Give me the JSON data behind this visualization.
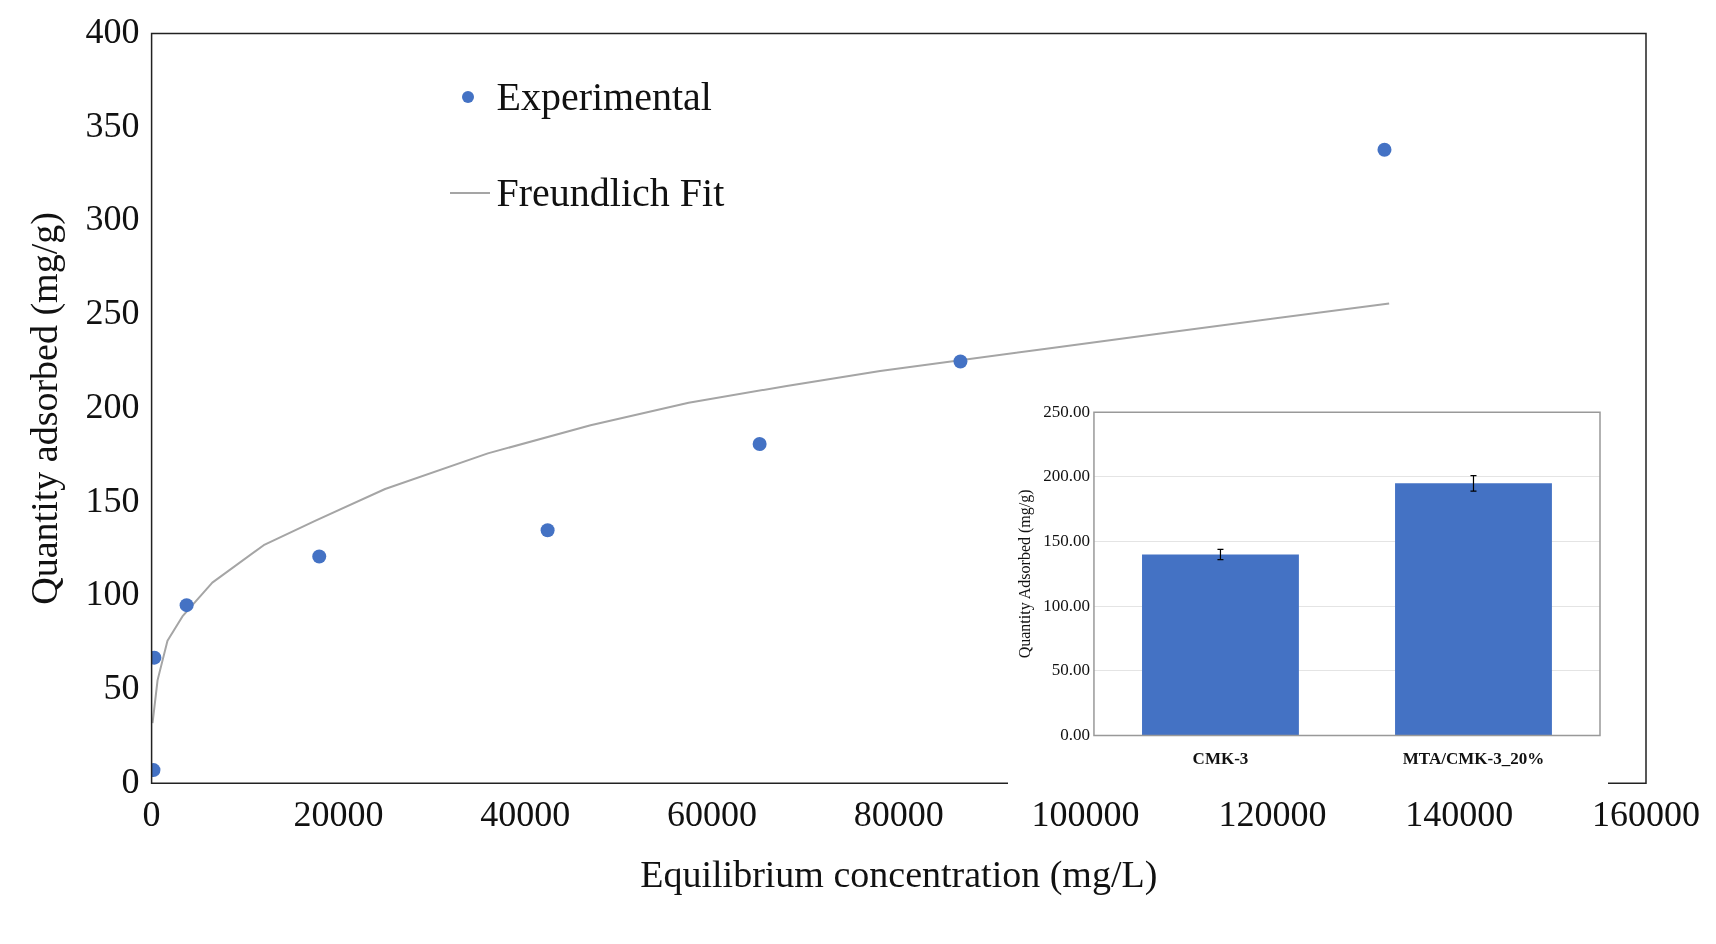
{
  "chart_data": [
    {
      "type": "scatter",
      "xlabel": "Equilibrium concentration (mg/L)",
      "ylabel": "Quantity adsorbed (mg/g)",
      "xlim": [
        0,
        160000
      ],
      "xticks": [
        0,
        20000,
        40000,
        60000,
        80000,
        100000,
        120000,
        140000,
        160000
      ],
      "ylim": [
        0,
        400
      ],
      "yticks": [
        0,
        50,
        100,
        150,
        200,
        250,
        300,
        350,
        400
      ],
      "grid": false,
      "legend": "top",
      "series": [
        {
          "name": "Experimental",
          "type": "scatter",
          "marker": "circle",
          "color": "#4472c4",
          "x": [
            200,
            300,
            3750,
            17950,
            42400,
            65100,
            86600,
            132000
          ],
          "values": [
            7,
            67,
            95,
            121,
            135,
            181,
            225,
            338
          ]
        },
        {
          "name": "Freundlich Fit",
          "type": "line",
          "marker": "none",
          "color": "#a5a5a5",
          "x": [
            100,
            640,
            1700,
            3300,
            6500,
            12000,
            17500,
            25000,
            36000,
            47000,
            57500,
            68000,
            78000,
            96000,
            108000,
            132500
          ],
          "values": [
            32,
            55,
            76,
            89,
            107,
            127,
            140,
            157,
            176,
            191,
            203,
            212,
            220,
            232,
            240,
            256
          ]
        }
      ]
    },
    {
      "type": "bar",
      "ylabel": "Quantity Adsorbed (mg/g)",
      "categories": [
        "CMK-3",
        "MTA/CMK-3_20%"
      ],
      "values": [
        140,
        195
      ],
      "errors": [
        4,
        6
      ],
      "color": "#4472c4",
      "ylim": [
        0,
        250
      ],
      "yticks": [
        {
          "value": 0,
          "label": "0.00"
        },
        {
          "value": 50,
          "label": "50.00"
        },
        {
          "value": 100,
          "label": "100.00"
        },
        {
          "value": 150,
          "label": "150.00"
        },
        {
          "value": 200,
          "label": "200.00"
        },
        {
          "value": 250,
          "label": "250.00"
        }
      ],
      "grid": "y"
    }
  ]
}
